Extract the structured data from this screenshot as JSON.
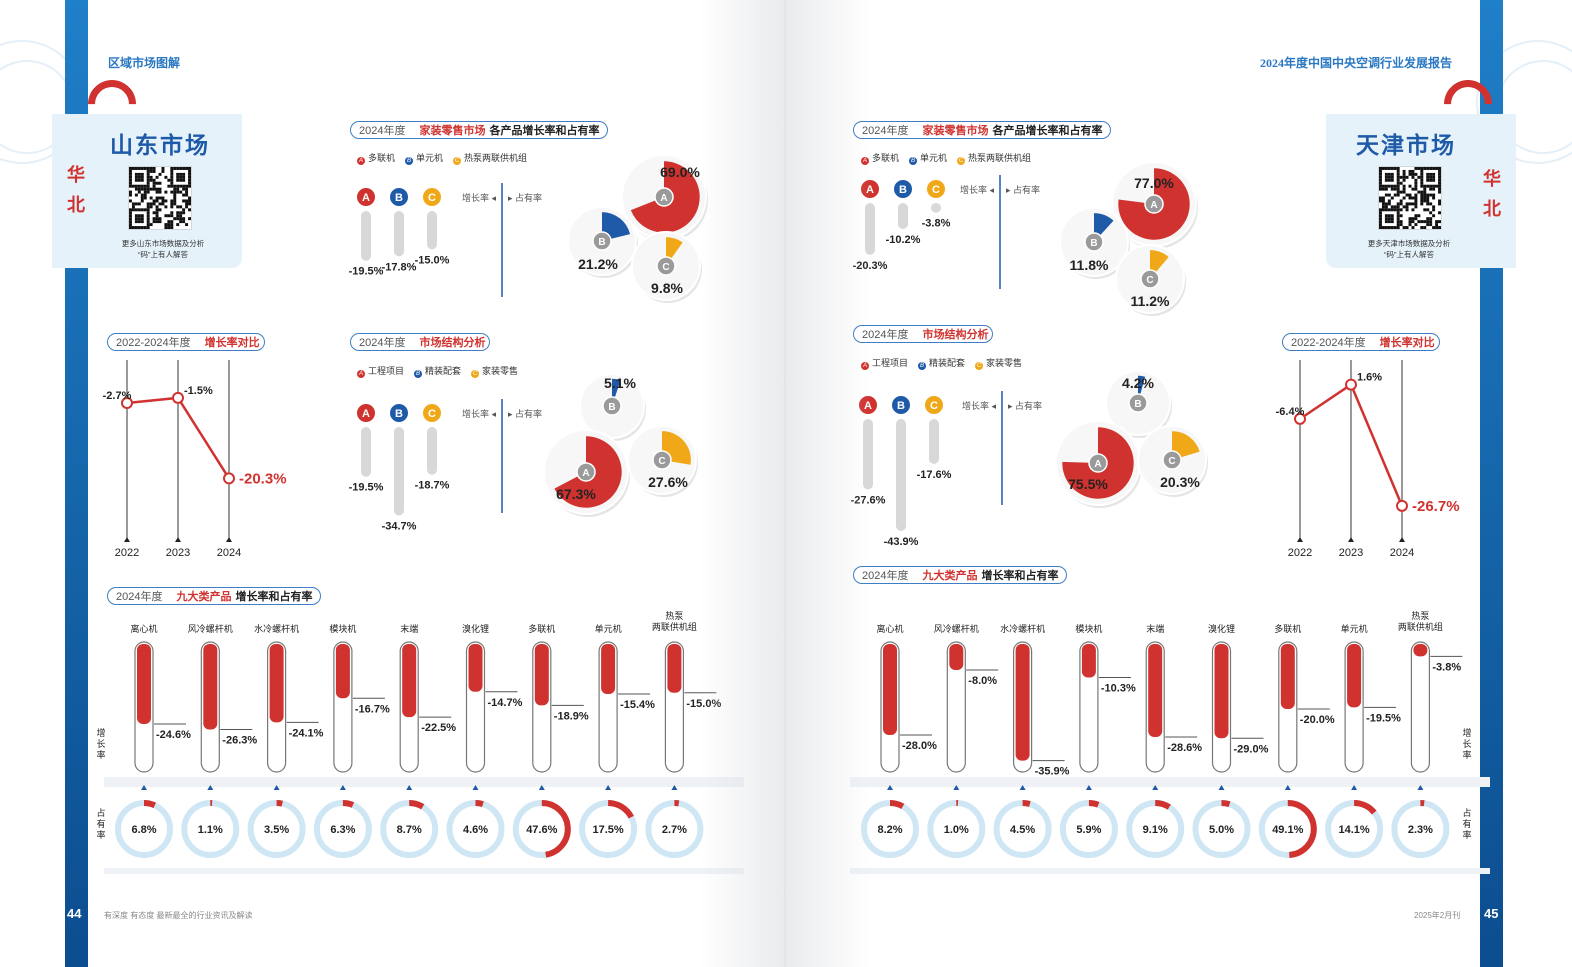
{
  "colors": {
    "red": "#d0332f",
    "blue": "#1f5aa8",
    "orange": "#f0a818",
    "lightblue": "#cfe6f4"
  },
  "left": {
    "header": "区域市场图解",
    "card": {
      "name": "山东市场",
      "region": "华北",
      "note": "更多山东市场数据及分析\n“码”上有人解答"
    },
    "footer": {
      "page": "44",
      "text": "有深度 有态度 最新最全的行业资讯及解读"
    },
    "retail": {
      "pill": {
        "year": "2024年度",
        "hl": "家装零售市场",
        "rest": "各产品增长率和占有率"
      },
      "legend": [
        "多联机",
        "单元机",
        "热泵两联供机组"
      ],
      "axis": {
        "growth": "增长率",
        "share": "占有率"
      },
      "chart_data": {
        "type": "bar",
        "categories": [
          "A",
          "B",
          "C"
        ],
        "growth": [
          -19.5,
          -17.8,
          -15.0
        ],
        "share": [
          69.0,
          21.2,
          9.8
        ]
      }
    },
    "structure": {
      "pill": {
        "year": "2024年度",
        "hl": "市场结构分析",
        "rest": ""
      },
      "legend": [
        "工程项目",
        "精装配套",
        "家装零售"
      ],
      "axis": {
        "growth": "增长率",
        "share": "占有率"
      },
      "chart_data": {
        "type": "bar",
        "categories": [
          "A",
          "B",
          "C"
        ],
        "growth": [
          -19.5,
          -34.7,
          -18.7
        ],
        "share": [
          67.3,
          5.1,
          27.6
        ]
      }
    },
    "trend": {
      "pill": {
        "year": "2022-2024年度",
        "hl": "增长率对比",
        "rest": ""
      },
      "chart_data": {
        "type": "line",
        "x": [
          "2022",
          "2023",
          "2024"
        ],
        "y": [
          -2.7,
          -1.5,
          -20.3
        ]
      }
    },
    "nine": {
      "pill": {
        "year": "2024年度",
        "hl": "九大类产品",
        "rest": "增长率和占有率"
      },
      "growth_label": "增长率",
      "share_label": "占有率",
      "chart_data": {
        "type": "bar",
        "categories": [
          "离心机",
          "风冷螺杆机",
          "水冷螺杆机",
          "模块机",
          "末端",
          "溴化锂",
          "多联机",
          "单元机",
          "热泵\n两联供机组"
        ],
        "growth": [
          -24.6,
          -26.3,
          -24.1,
          -16.7,
          -22.5,
          -14.7,
          -18.9,
          -15.4,
          -15.0
        ],
        "share": [
          6.8,
          1.1,
          3.5,
          6.3,
          8.7,
          4.6,
          47.6,
          17.5,
          2.7
        ]
      }
    }
  },
  "right": {
    "header": "2024年度中国中央空调行业发展报告",
    "card": {
      "name": "天津市场",
      "region": "华北",
      "note": "更多天津市场数据及分析\n“码”上有人解答"
    },
    "footer": {
      "page": "45",
      "text": "2025年2月刊"
    },
    "retail": {
      "pill": {
        "year": "2024年度",
        "hl": "家装零售市场",
        "rest": "各产品增长率和占有率"
      },
      "legend": [
        "多联机",
        "单元机",
        "热泵两联供机组"
      ],
      "axis": {
        "growth": "增长率",
        "share": "占有率"
      },
      "chart_data": {
        "type": "bar",
        "categories": [
          "A",
          "B",
          "C"
        ],
        "growth": [
          -20.3,
          -10.2,
          -3.8
        ],
        "share": [
          77.0,
          11.8,
          11.2
        ]
      }
    },
    "structure": {
      "pill": {
        "year": "2024年度",
        "hl": "市场结构分析",
        "rest": ""
      },
      "legend": [
        "工程项目",
        "精装配套",
        "家装零售"
      ],
      "axis": {
        "growth": "增长率",
        "share": "占有率"
      },
      "chart_data": {
        "type": "bar",
        "categories": [
          "A",
          "B",
          "C"
        ],
        "growth": [
          -27.6,
          -43.9,
          -17.6
        ],
        "share": [
          75.5,
          4.2,
          20.3
        ]
      }
    },
    "trend": {
      "pill": {
        "year": "2022-2024年度",
        "hl": "增长率对比",
        "rest": ""
      },
      "chart_data": {
        "type": "line",
        "x": [
          "2022",
          "2023",
          "2024"
        ],
        "y": [
          -6.4,
          1.6,
          -26.7
        ]
      }
    },
    "nine": {
      "pill": {
        "year": "2024年度",
        "hl": "九大类产品",
        "rest": "增长率和占有率"
      },
      "growth_label": "增长率",
      "share_label": "占有率",
      "chart_data": {
        "type": "bar",
        "categories": [
          "离心机",
          "风冷螺杆机",
          "水冷螺杆机",
          "模块机",
          "末端",
          "溴化锂",
          "多联机",
          "单元机",
          "热泵\n两联供机组"
        ],
        "growth": [
          -28.0,
          -8.0,
          -35.9,
          -10.3,
          -28.6,
          -29.0,
          -20.0,
          -19.5,
          -3.8
        ],
        "share": [
          8.2,
          1.0,
          4.5,
          5.9,
          9.1,
          5.0,
          49.1,
          14.1,
          2.3
        ]
      }
    }
  }
}
